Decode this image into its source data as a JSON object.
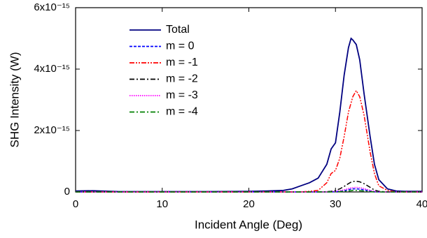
{
  "chart_data": {
    "type": "line",
    "xlabel": "Incident Angle (Deg)",
    "ylabel": "SHG Intensity (W)",
    "x": [
      0,
      2,
      5,
      10,
      15,
      20,
      22,
      24,
      25,
      26,
      27,
      28,
      29,
      29.5,
      30,
      30.5,
      31,
      31.5,
      31.8,
      32,
      32.4,
      32.8,
      33.3,
      34,
      34.5,
      35,
      36,
      37,
      38,
      40
    ],
    "xlim": [
      0,
      40
    ],
    "xticks": [
      0,
      10,
      20,
      30,
      40
    ],
    "ylim": [
      0,
      6e-15
    ],
    "yticks": [
      0,
      {
        "value": 2e-15,
        "label": "2x10⁻¹⁵"
      },
      {
        "value": 4e-15,
        "label": "4x10⁻¹⁵"
      },
      {
        "value": 6e-15,
        "label": "6x10⁻¹⁵"
      }
    ],
    "legend": "upper-left",
    "series": [
      {
        "name": "Total",
        "color": "#000080",
        "dash": "solid",
        "values": [
          3e-17,
          4e-17,
          1e-17,
          1e-17,
          1e-17,
          2e-17,
          3e-17,
          5e-17,
          1e-16,
          2e-16,
          3e-16,
          4.5e-16,
          9e-16,
          1.4e-15,
          1.6e-15,
          2.6e-15,
          3.8e-15,
          4.7e-15,
          5e-15,
          4.95e-15,
          4.8e-15,
          4.3e-15,
          3.2e-15,
          1.8e-15,
          9e-16,
          4e-16,
          1e-16,
          3e-17,
          2e-17,
          2e-17
        ]
      },
      {
        "name": "m = 0",
        "color": "#0000ff",
        "dash": "dashed",
        "values": [
          0,
          0,
          0,
          0,
          0,
          0,
          0,
          0,
          0,
          0,
          0,
          0,
          0,
          0,
          1e-17,
          2e-17,
          4e-17,
          7e-17,
          9e-17,
          1e-16,
          1e-16,
          9e-17,
          7e-17,
          3e-17,
          1e-17,
          0,
          0,
          0,
          0,
          0
        ]
      },
      {
        "name": "m = -1",
        "color": "#ff0000",
        "dash": "dash-dot-dot",
        "values": [
          0,
          0,
          0,
          0,
          0,
          0,
          0,
          0,
          0,
          0,
          2e-17,
          5e-17,
          3e-16,
          6e-16,
          7e-16,
          1.1e-15,
          1.8e-15,
          2.6e-15,
          2.9e-15,
          3.1e-15,
          3.3e-15,
          3.1e-15,
          2.5e-15,
          1.3e-15,
          6e-16,
          2e-16,
          5e-17,
          0,
          0,
          0
        ]
      },
      {
        "name": "m = -2",
        "color": "#000000",
        "dash": "dash-dot",
        "values": [
          0,
          0,
          0,
          0,
          0,
          0,
          0,
          0,
          0,
          0,
          0,
          0,
          1e-17,
          2e-17,
          5e-17,
          1e-16,
          1.8e-16,
          2.7e-16,
          3.2e-16,
          3.4e-16,
          3.5e-16,
          3.3e-16,
          2.7e-16,
          1.5e-16,
          6e-17,
          2e-17,
          0,
          0,
          0,
          0
        ]
      },
      {
        "name": "m = -3",
        "color": "#ff00ff",
        "dash": "dotted",
        "values": [
          0,
          0,
          0,
          0,
          0,
          0,
          0,
          0,
          0,
          0,
          0,
          0,
          0,
          1e-17,
          2e-17,
          4e-17,
          7e-17,
          1.1e-16,
          1.3e-16,
          1.4e-16,
          1.5e-16,
          1.4e-16,
          1.1e-16,
          5e-17,
          2e-17,
          0,
          0,
          0,
          0,
          0
        ]
      },
      {
        "name": "m = -4",
        "color": "#008000",
        "dash": "dash-dot",
        "values": [
          0,
          0,
          0,
          0,
          0,
          0,
          0,
          0,
          0,
          0,
          0,
          0,
          0,
          0,
          1e-17,
          1e-17,
          2e-17,
          3e-17,
          4e-17,
          5e-17,
          5e-17,
          4e-17,
          3e-17,
          1e-17,
          0,
          0,
          0,
          0,
          0,
          0
        ]
      }
    ]
  }
}
